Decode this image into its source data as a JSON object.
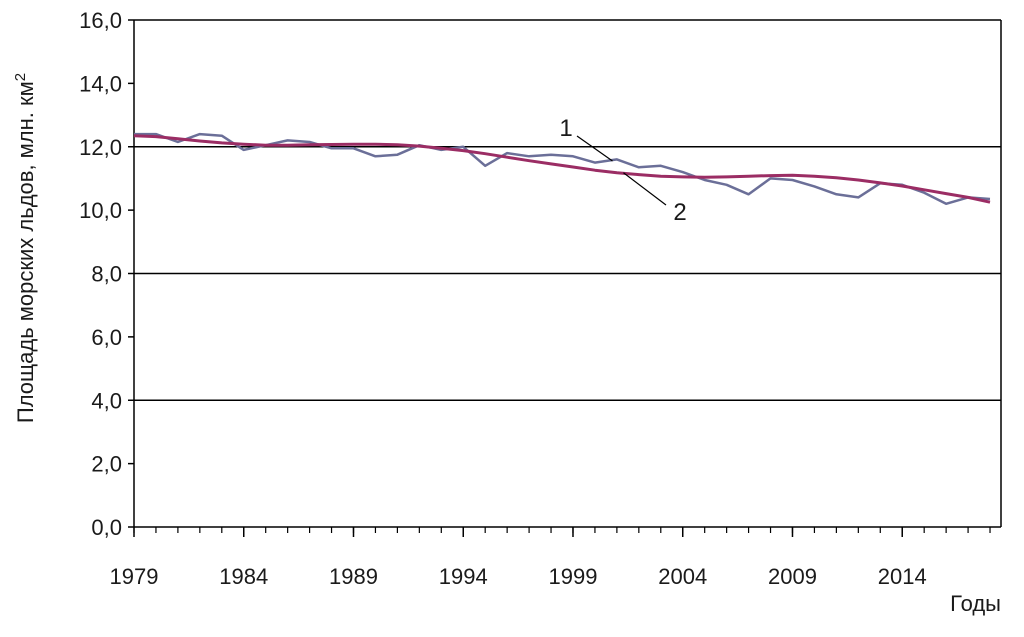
{
  "chart_data": {
    "type": "line",
    "title": "",
    "xlabel": "Годы",
    "ylabel_main": "Площадь морских льдов, млн. км",
    "ylabel_sup": "2",
    "xlim": [
      1979,
      2018.5
    ],
    "ylim": [
      0,
      16
    ],
    "x_ticks": [
      1979,
      1984,
      1989,
      1994,
      1999,
      2004,
      2009,
      2014
    ],
    "y_ticks": [
      {
        "value": 0,
        "label": "0,0"
      },
      {
        "value": 2,
        "label": "2,0"
      },
      {
        "value": 4,
        "label": "4,0"
      },
      {
        "value": 6,
        "label": "6,0"
      },
      {
        "value": 8,
        "label": "8,0"
      },
      {
        "value": 10,
        "label": "10,0"
      },
      {
        "value": 12,
        "label": "12,0"
      },
      {
        "value": 14,
        "label": "14,0"
      },
      {
        "value": 16,
        "label": "16,0"
      }
    ],
    "gridlines_y": [
      4,
      8,
      12,
      16
    ],
    "series": [
      {
        "label": "1",
        "color": "#6b6f98",
        "x": [
          1979,
          1980,
          1981,
          1982,
          1983,
          1984,
          1985,
          1986,
          1987,
          1988,
          1989,
          1990,
          1991,
          1992,
          1993,
          1994,
          1995,
          1996,
          1997,
          1998,
          1999,
          2000,
          2001,
          2002,
          2003,
          2004,
          2005,
          2006,
          2007,
          2008,
          2009,
          2010,
          2011,
          2012,
          2013,
          2014,
          2015,
          2016,
          2017,
          2018
        ],
        "y": [
          12.4,
          12.4,
          12.15,
          12.4,
          12.35,
          11.9,
          12.05,
          12.2,
          12.15,
          11.95,
          11.95,
          11.7,
          11.75,
          12.05,
          11.9,
          12.0,
          11.4,
          11.8,
          11.7,
          11.75,
          11.7,
          11.5,
          11.6,
          11.35,
          11.4,
          11.2,
          10.95,
          10.8,
          10.5,
          11.0,
          10.95,
          10.75,
          10.5,
          10.4,
          10.85,
          10.8,
          10.55,
          10.2,
          10.4,
          10.35
        ]
      },
      {
        "label": "2",
        "color": "#9b2d64",
        "x": [
          1979,
          1980,
          1981,
          1982,
          1983,
          1984,
          1985,
          1986,
          1987,
          1988,
          1989,
          1990,
          1991,
          1992,
          1993,
          1994,
          1995,
          1996,
          1997,
          1998,
          1999,
          2000,
          2001,
          2002,
          2003,
          2004,
          2005,
          2006,
          2007,
          2008,
          2009,
          2010,
          2011,
          2012,
          2013,
          2014,
          2015,
          2016,
          2017,
          2018
        ],
        "y": [
          12.35,
          12.32,
          12.25,
          12.18,
          12.12,
          12.08,
          12.05,
          12.05,
          12.06,
          12.07,
          12.08,
          12.08,
          12.06,
          12.02,
          11.95,
          11.88,
          11.78,
          11.67,
          11.56,
          11.46,
          11.36,
          11.26,
          11.18,
          11.12,
          11.07,
          11.05,
          11.04,
          11.05,
          11.07,
          11.09,
          11.1,
          11.07,
          11.02,
          10.95,
          10.86,
          10.76,
          10.64,
          10.52,
          10.4,
          10.25
        ]
      }
    ]
  }
}
